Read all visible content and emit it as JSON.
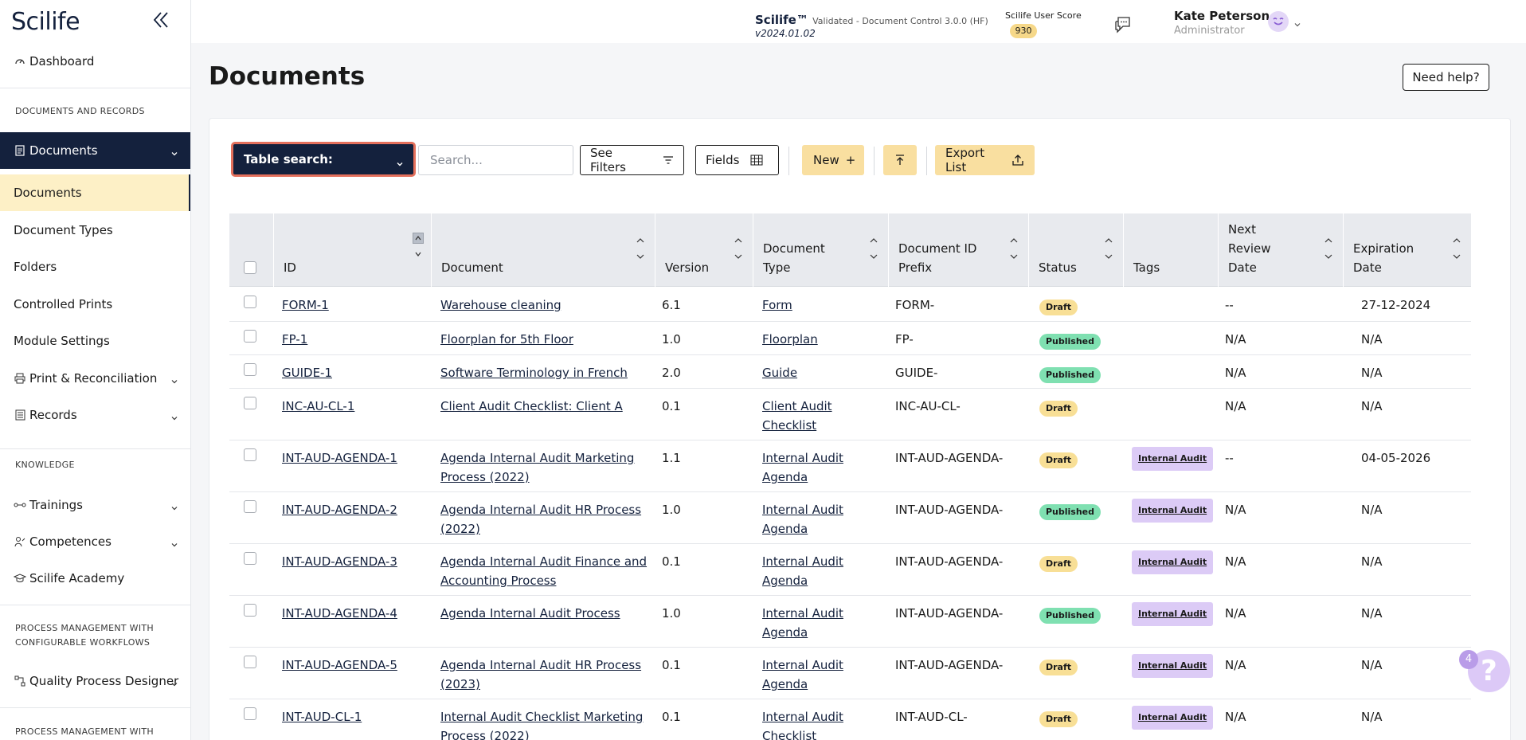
{
  "sidebar": {
    "logo": "Scilife",
    "dashboard": "Dashboard",
    "sections": {
      "documents_records": "DOCUMENTS AND RECORDS",
      "knowledge": "KNOWLEDGE",
      "process_mgmt": "PROCESS MANAGEMENT WITH CONFIGURABLE WORKFLOWS",
      "process_mgmt_2": "PROCESS MANAGEMENT WITH"
    },
    "documents_group": "Documents",
    "sub_items": [
      "Documents",
      "Document Types",
      "Folders",
      "Controlled Prints",
      "Module Settings"
    ],
    "print_reconciliation": "Print & Reconciliation",
    "records": "Records",
    "trainings": "Trainings",
    "competences": "Competences",
    "academy": "Scilife Academy",
    "quality_designer": "Quality Process Designer"
  },
  "header": {
    "product": "Scilife™",
    "product_sub": "Validated - Document Control 3.0.0 (HF)",
    "version": "v2024.01.02",
    "score_label": "Scilife User Score",
    "score_value": "930",
    "user_name": "Kate Peterson",
    "user_role": "Administrator"
  },
  "main": {
    "title": "Documents",
    "help": "Need help?"
  },
  "toolbar": {
    "table_search": "Table search:",
    "search_placeholder": "Search...",
    "see_filters": "See Filters",
    "fields": "Fields",
    "new": "New",
    "new_plus": "+",
    "export_list": "Export List"
  },
  "table": {
    "columns": [
      "ID",
      "Document",
      "Version",
      "Document Type",
      "Document ID Prefix",
      "Status",
      "Tags",
      "Next Review Date",
      "Expiration Date"
    ],
    "column_lines": {
      "doc_type": [
        "Document",
        "Type"
      ],
      "prefix": [
        "Document ID",
        "Prefix"
      ],
      "next_review": [
        "Next",
        "Review",
        "Date"
      ],
      "expiration": [
        "Expiration",
        "Date"
      ]
    },
    "rows": [
      {
        "id": "FORM-1",
        "document": [
          "Warehouse cleaning"
        ],
        "version": "6.1",
        "type": [
          "Form"
        ],
        "prefix": "FORM-",
        "status": "Draft",
        "tag": "",
        "next_review": "--",
        "expiration": "27-12-2024"
      },
      {
        "id": "FP-1",
        "document": [
          "Floorplan for 5th Floor"
        ],
        "version": "1.0",
        "type": [
          "Floorplan"
        ],
        "prefix": "FP-",
        "status": "Published",
        "tag": "",
        "next_review": "N/A",
        "expiration": "N/A"
      },
      {
        "id": "GUIDE-1",
        "document": [
          "Software Terminology in French"
        ],
        "version": "2.0",
        "type": [
          "Guide"
        ],
        "prefix": "GUIDE-",
        "status": "Published",
        "tag": "",
        "next_review": "N/A",
        "expiration": "N/A"
      },
      {
        "id": "INC-AU-CL-1",
        "document": [
          "Client Audit Checklist: Client A"
        ],
        "version": "0.1",
        "type": [
          "Client Audit",
          "Checklist"
        ],
        "prefix": "INC-AU-CL-",
        "status": "Draft",
        "tag": "",
        "next_review": "N/A",
        "expiration": "N/A"
      },
      {
        "id": "INT-AUD-AGENDA-1",
        "document": [
          "Agenda Internal Audit Marketing",
          "Process (2022)"
        ],
        "version": "1.1",
        "type": [
          "Internal Audit",
          "Agenda"
        ],
        "prefix": "INT-AUD-AGENDA-",
        "status": "Draft",
        "tag": "Internal Audit",
        "next_review": "--",
        "expiration": "04-05-2026"
      },
      {
        "id": "INT-AUD-AGENDA-2",
        "document": [
          "Agenda Internal Audit HR Process",
          "(2022)"
        ],
        "version": "1.0",
        "type": [
          "Internal Audit",
          "Agenda"
        ],
        "prefix": "INT-AUD-AGENDA-",
        "status": "Published",
        "tag": "Internal Audit",
        "next_review": "N/A",
        "expiration": "N/A"
      },
      {
        "id": "INT-AUD-AGENDA-3",
        "document": [
          "Agenda Internal Audit Finance and",
          "Accounting Process"
        ],
        "version": "0.1",
        "type": [
          "Internal Audit",
          "Agenda"
        ],
        "prefix": "INT-AUD-AGENDA-",
        "status": "Draft",
        "tag": "Internal Audit",
        "next_review": "N/A",
        "expiration": "N/A"
      },
      {
        "id": "INT-AUD-AGENDA-4",
        "document": [
          "Agenda Internal Audit Process"
        ],
        "version": "1.0",
        "type": [
          "Internal Audit",
          "Agenda"
        ],
        "prefix": "INT-AUD-AGENDA-",
        "status": "Published",
        "tag": "Internal Audit",
        "next_review": "N/A",
        "expiration": "N/A"
      },
      {
        "id": "INT-AUD-AGENDA-5",
        "document": [
          "Agenda Internal Audit HR Process",
          "(2023)"
        ],
        "version": "0.1",
        "type": [
          "Internal Audit",
          "Agenda"
        ],
        "prefix": "INT-AUD-AGENDA-",
        "status": "Draft",
        "tag": "Internal Audit",
        "next_review": "N/A",
        "expiration": "N/A"
      },
      {
        "id": "INT-AUD-CL-1",
        "document": [
          "Internal Audit Checklist Marketing",
          "Process (2022)"
        ],
        "version": "0.1",
        "type": [
          "Internal Audit",
          "Checklist"
        ],
        "prefix": "INT-AUD-CL-",
        "status": "Draft",
        "tag": "Internal Audit",
        "next_review": "N/A",
        "expiration": "N/A"
      }
    ]
  },
  "fab": {
    "count": "4",
    "symbol": "?"
  },
  "colors": {
    "navy": "#14213d",
    "yellow": "#f9dfa0",
    "highlight": "#e4705c",
    "published": "#7fe0b1",
    "tag": "#dccbf6"
  }
}
